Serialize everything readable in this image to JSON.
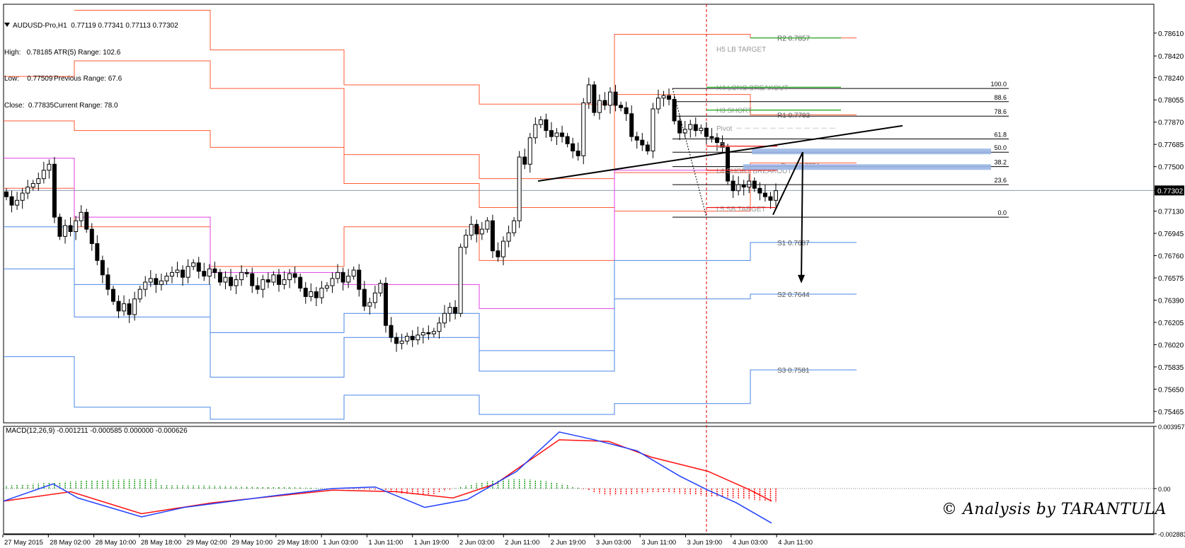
{
  "header": {
    "symbol_line": "AUDUSD-Pro,H1  0.77119 0.77341 0.77113 0.77302",
    "high": "High:   0.78185",
    "atr": "ATR(5) Range: 102.6",
    "low": "Low:    0.77509",
    "prev_range": "Previous Range: 67.6",
    "close": "Close:  0.77835",
    "cur_range": "Current Range: 78.0"
  },
  "macd_header": "MACD(12,26,9) -0.001211 -0.000585 0.000000 -0.000626",
  "signature": "© Analysis by TARANTULA",
  "colors": {
    "resistance": "#ff5a36",
    "support": "#4a86e8",
    "pivot": "#e040e0",
    "macd": "#2040ff",
    "signal": "#ff1010",
    "hist_pos": "#1a9a1a",
    "hist_neg": "#ff1010",
    "fib": "#000000",
    "green": "#22aa22",
    "vline": "#dd0000",
    "zone": "#9bb7e6"
  },
  "chart_data": {
    "type": "candlestick",
    "symbol": "AUDUSD-Pro",
    "timeframe": "H1",
    "ylim": [
      0.7537,
      0.7885
    ],
    "price_ticks": [
      "0.78610",
      "0.78420",
      "0.78240",
      "0.78055",
      "0.77870",
      "0.77685",
      "0.77500",
      "0.77302",
      "0.77130",
      "0.76945",
      "0.76760",
      "0.76575",
      "0.76390",
      "0.76205",
      "0.76020",
      "0.75835",
      "0.75650",
      "0.75465"
    ],
    "current_price": "0.77302",
    "time_labels": [
      "27 May 2015",
      "28 May 02:00",
      "28 May 10:00",
      "28 May 18:00",
      "29 May 02:00",
      "29 May 10:00",
      "29 May 18:00",
      "1 Jun 03:00",
      "1 Jun 11:00",
      "1 Jun 19:00",
      "2 Jun 03:00",
      "2 Jun 11:00",
      "2 Jun 19:00",
      "3 Jun 03:00",
      "3 Jun 11:00",
      "3 Jun 19:00",
      "4 Jun 03:00",
      "4 Jun 11:00"
    ],
    "close_series": [
      0.7725,
      0.7718,
      0.7722,
      0.7728,
      0.7733,
      0.7736,
      0.774,
      0.7747,
      0.7752,
      0.7708,
      0.7692,
      0.7701,
      0.7696,
      0.7705,
      0.7712,
      0.7698,
      0.7686,
      0.7672,
      0.766,
      0.7648,
      0.7638,
      0.763,
      0.7636,
      0.7627,
      0.764,
      0.7648,
      0.7654,
      0.7657,
      0.7652,
      0.7655,
      0.7659,
      0.7662,
      0.7664,
      0.7658,
      0.7667,
      0.767,
      0.7663,
      0.7659,
      0.7665,
      0.7662,
      0.7654,
      0.7658,
      0.7651,
      0.7656,
      0.7662,
      0.7661,
      0.7651,
      0.7648,
      0.7656,
      0.7654,
      0.766,
      0.7652,
      0.7656,
      0.7661,
      0.7658,
      0.7649,
      0.7642,
      0.7646,
      0.7641,
      0.7649,
      0.7651,
      0.7657,
      0.7662,
      0.7654,
      0.7659,
      0.7664,
      0.7648,
      0.7634,
      0.7637,
      0.7645,
      0.7653,
      0.7618,
      0.7608,
      0.7603,
      0.7605,
      0.7609,
      0.7606,
      0.761,
      0.7612,
      0.7611,
      0.7613,
      0.762,
      0.7628,
      0.7633,
      0.7628,
      0.7683,
      0.7693,
      0.7702,
      0.7694,
      0.7698,
      0.7705,
      0.768,
      0.7675,
      0.7688,
      0.7695,
      0.7705,
      0.7758,
      0.7752,
      0.7774,
      0.7785,
      0.7789,
      0.778,
      0.7775,
      0.7778,
      0.7775,
      0.7769,
      0.7763,
      0.7759,
      0.7803,
      0.7818,
      0.7795,
      0.7805,
      0.7801,
      0.7812,
      0.7801,
      0.7799,
      0.7794,
      0.7775,
      0.7772,
      0.7768,
      0.7763,
      0.7798,
      0.7807,
      0.7809,
      0.7806,
      0.7788,
      0.7778,
      0.7781,
      0.7785,
      0.778,
      0.7782,
      0.7775,
      0.7774,
      0.777,
      0.7766,
      0.7738,
      0.773,
      0.7735,
      0.7733,
      0.7738,
      0.7732,
      0.7728,
      0.7725,
      0.7722,
      0.773
    ],
    "levels": [
      {
        "label": "R2 0.7857",
        "value": 0.7857,
        "kind": "resistance"
      },
      {
        "label": "H5 LB TARGET",
        "value": 0.7848,
        "kind": "camarilla"
      },
      {
        "label": "H4 LONG BREAKOUT",
        "value": 0.7816,
        "kind": "camarilla"
      },
      {
        "label": "H3 SHORT",
        "value": 0.7797,
        "kind": "camarilla"
      },
      {
        "label": "R1 0.7793",
        "value": 0.7793,
        "kind": "resistance"
      },
      {
        "label": "Pivot",
        "value": 0.7782,
        "kind": "pivot"
      },
      {
        "label": "L3",
        "value": 0.7768,
        "kind": "camarilla"
      },
      {
        "label": "Pivot 0.7751",
        "value": 0.7751,
        "kind": "pivot"
      },
      {
        "label": "L4 SHORT BREAKOUT",
        "value": 0.7747,
        "kind": "camarilla"
      },
      {
        "label": "L5 SB TARGET",
        "value": 0.7715,
        "kind": "camarilla"
      },
      {
        "label": "S1 0.7687",
        "value": 0.7687,
        "kind": "support"
      },
      {
        "label": "S2 0.7644",
        "value": 0.7644,
        "kind": "support"
      },
      {
        "label": "S3 0.7581",
        "value": 0.7581,
        "kind": "support"
      }
    ],
    "fibonacci": [
      {
        "label": "100.0",
        "value": 0.7815
      },
      {
        "label": "88.6",
        "value": 0.7804
      },
      {
        "label": "78.6",
        "value": 0.7792
      },
      {
        "label": "61.8",
        "value": 0.7773
      },
      {
        "label": "50.0",
        "value": 0.7762
      },
      {
        "label": "38.2",
        "value": 0.775
      },
      {
        "label": "23.6",
        "value": 0.7735
      },
      {
        "label": "0.0",
        "value": 0.7708
      }
    ],
    "macd": {
      "name": "MACD(12,26,9)",
      "values": [
        "-0.001211",
        "-0.000585",
        "0.000000",
        "-0.000626"
      ],
      "ticks": [
        "0.003957",
        "0.00",
        "-0.002883"
      ]
    }
  }
}
